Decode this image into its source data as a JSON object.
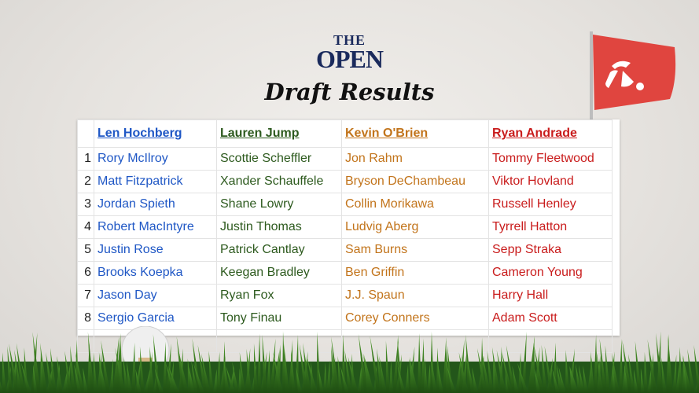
{
  "logo": {
    "line1": "THE",
    "line2": "OPEN"
  },
  "title": "Draft Results",
  "columns": [
    {
      "name": "Len Hochberg",
      "color": "#1f57c5",
      "picks": [
        "Rory McIlroy",
        "Matt Fitzpatrick",
        "Jordan Spieth",
        "Robert MacIntyre",
        "Justin Rose",
        "Brooks Koepka",
        "Jason Day",
        "Sergio Garcia"
      ]
    },
    {
      "name": "Lauren Jump",
      "color": "#2d5a1e",
      "picks": [
        "Scottie Scheffler",
        "Xander Schauffele",
        "Shane Lowry",
        "Justin Thomas",
        "Patrick Cantlay",
        "Keegan Bradley",
        "Ryan Fox",
        "Tony Finau"
      ]
    },
    {
      "name": "Kevin O'Brien",
      "color": "#c2741b",
      "picks": [
        "Jon Rahm",
        "Bryson DeChambeau",
        "Collin Morikawa",
        "Ludvig Aberg",
        "Sam Burns",
        "Ben Griffin",
        "J.J. Spaun",
        "Corey Conners"
      ]
    },
    {
      "name": "Ryan Andrade",
      "color": "#c91c1c",
      "picks": [
        "Tommy Fleetwood",
        "Viktor Hovland",
        "Russell Henley",
        "Tyrrell Hatton",
        "Sepp Straka",
        "Cameron Young",
        "Harry Hall",
        "Adam Scott"
      ]
    }
  ],
  "rounds": [
    "1",
    "2",
    "3",
    "4",
    "5",
    "6",
    "7",
    "8"
  ],
  "flag_color": "#e0453f"
}
